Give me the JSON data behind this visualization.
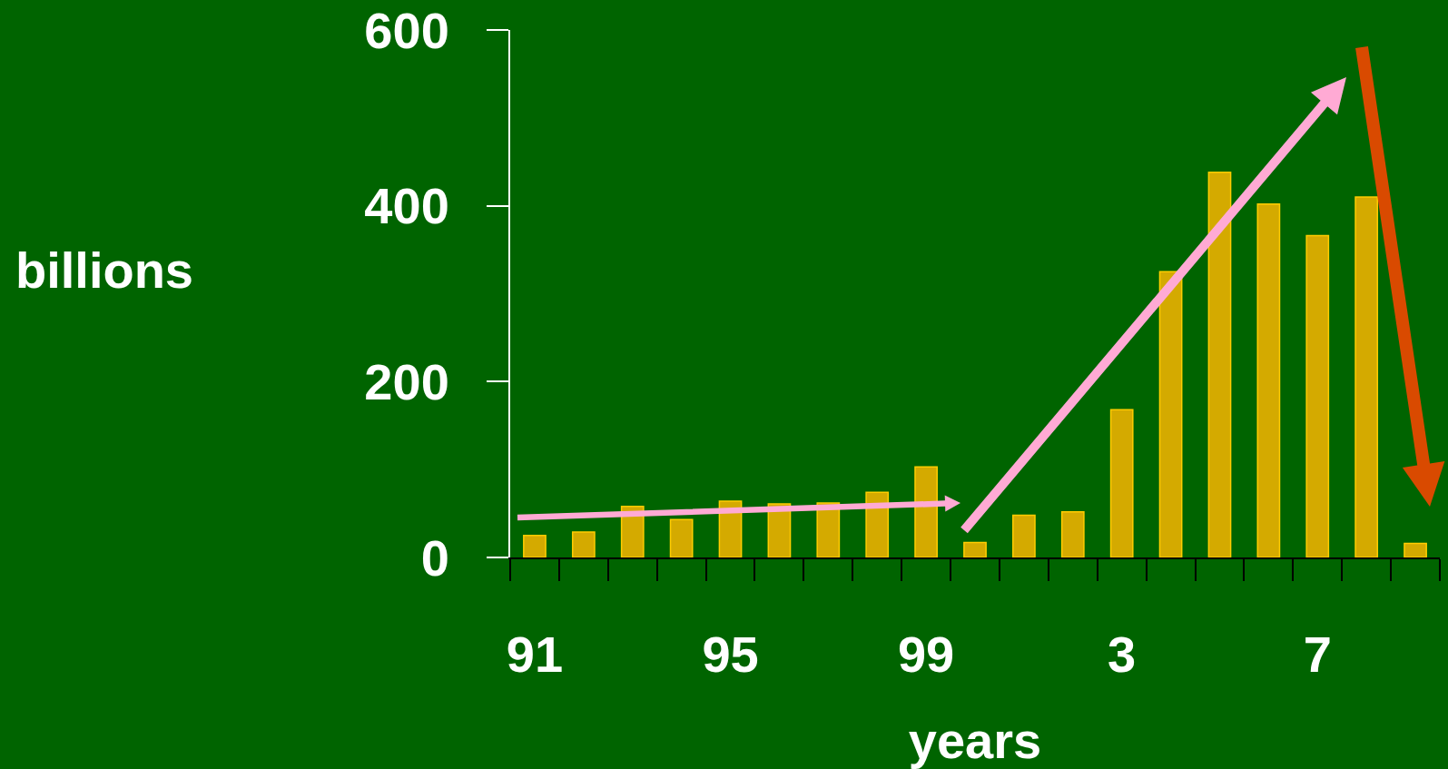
{
  "chart_data": {
    "type": "bar",
    "xlabel": "years",
    "ylabel": "billions",
    "categories": [
      "91",
      null,
      null,
      null,
      "95",
      null,
      null,
      null,
      "99",
      null,
      null,
      null,
      "3",
      null,
      null,
      null,
      "7",
      null,
      null
    ],
    "values": [
      25,
      29,
      58,
      43,
      64,
      61,
      62,
      74,
      103,
      17,
      48,
      52,
      168,
      325,
      438,
      402,
      366,
      410,
      16
    ],
    "color": "#d4aa00",
    "ylim": [
      0,
      600
    ],
    "yticks": [
      0,
      200,
      400,
      600
    ]
  }
}
